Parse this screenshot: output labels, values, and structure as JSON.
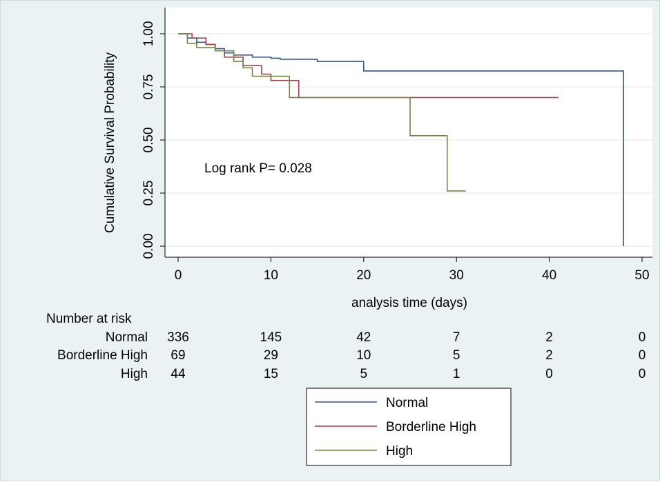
{
  "chart_data": {
    "type": "line",
    "ylabel": "Cumulative Survival Probability",
    "xlabel": "analysis time (days)",
    "xlim": [
      0,
      50
    ],
    "ylim": [
      0,
      1
    ],
    "x_ticks": [
      0,
      10,
      20,
      30,
      40,
      50
    ],
    "x_tick_labels": [
      "0",
      "10",
      "20",
      "30",
      "40",
      "50"
    ],
    "y_ticks": [
      0,
      0.25,
      0.5,
      0.75,
      1.0
    ],
    "y_tick_labels": [
      "0.00",
      "0.25",
      "0.50",
      "0.75",
      "1.00"
    ],
    "grid": "horizontal",
    "legend_position": "bottom",
    "annotation": "Log rank P= 0.028",
    "series": [
      {
        "name": "Normal",
        "color": "#2f5a8a",
        "steps": [
          [
            0,
            1.0
          ],
          [
            1,
            0.98
          ],
          [
            2,
            0.96
          ],
          [
            3,
            0.95
          ],
          [
            4,
            0.93
          ],
          [
            5,
            0.91
          ],
          [
            6,
            0.9
          ],
          [
            8,
            0.89
          ],
          [
            10,
            0.885
          ],
          [
            11,
            0.88
          ],
          [
            15,
            0.87
          ],
          [
            20,
            0.825
          ],
          [
            48,
            0.825
          ],
          [
            48,
            0.0
          ]
        ]
      },
      {
        "name": "Borderline High",
        "color": "#b53a4a",
        "steps": [
          [
            0,
            1.0
          ],
          [
            1.5,
            0.98
          ],
          [
            3,
            0.95
          ],
          [
            4,
            0.92
          ],
          [
            5,
            0.89
          ],
          [
            7,
            0.85
          ],
          [
            9,
            0.81
          ],
          [
            10,
            0.78
          ],
          [
            13,
            0.78
          ],
          [
            13,
            0.7
          ],
          [
            41,
            0.7
          ]
        ]
      },
      {
        "name": "High",
        "color": "#6e8a3a",
        "steps": [
          [
            0,
            1.0
          ],
          [
            1,
            0.955
          ],
          [
            2,
            0.935
          ],
          [
            4,
            0.92
          ],
          [
            6,
            0.87
          ],
          [
            7,
            0.84
          ],
          [
            8,
            0.8
          ],
          [
            12,
            0.7
          ],
          [
            25,
            0.7
          ],
          [
            25,
            0.52
          ],
          [
            29,
            0.52
          ],
          [
            29,
            0.26
          ],
          [
            31,
            0.26
          ]
        ]
      }
    ],
    "risk_table": {
      "title": "Number at risk",
      "rows": [
        {
          "label": "Normal",
          "values": [
            "336",
            "145",
            "42",
            "7",
            "2",
            "0"
          ]
        },
        {
          "label": "Borderline High",
          "values": [
            "69",
            "29",
            "10",
            "5",
            "2",
            "0"
          ]
        },
        {
          "label": "High",
          "values": [
            "44",
            "15",
            "5",
            "1",
            "0",
            "0"
          ]
        }
      ]
    }
  }
}
